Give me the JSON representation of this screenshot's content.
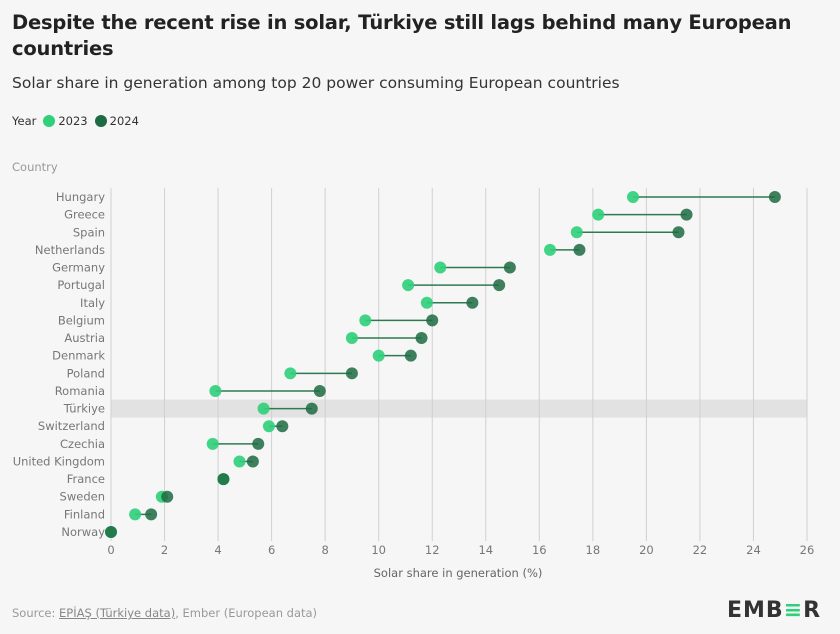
{
  "title": "Despite the recent rise in solar, Türkiye still lags behind many European countries",
  "subtitle": "Solar share in generation among top 20 power consuming European countries",
  "legend": {
    "label": "Year",
    "items": [
      "2023",
      "2024"
    ]
  },
  "colors": {
    "2023": "#2fd07a",
    "2024": "#1d6b42",
    "highlight": "#e2e2e2"
  },
  "source": {
    "prefix": "Source: ",
    "link": "EPİAŞ (Türkiye data)",
    "rest": ", Ember (European data)"
  },
  "logo": "EMBER",
  "chart_data": {
    "type": "dumbbell",
    "ylabel": "Country",
    "xlabel": "Solar share in generation (%)",
    "xlim": [
      0,
      26
    ],
    "xticks": [
      0,
      2,
      4,
      6,
      8,
      10,
      12,
      14,
      16,
      18,
      20,
      22,
      24,
      26
    ],
    "grid": "vertical",
    "highlight": "Türkiye",
    "categories": [
      "Hungary",
      "Greece",
      "Spain",
      "Netherlands",
      "Germany",
      "Portugal",
      "Italy",
      "Belgium",
      "Austria",
      "Denmark",
      "Poland",
      "Romania",
      "Türkiye",
      "Switzerland",
      "Czechia",
      "United Kingdom",
      "France",
      "Sweden",
      "Finland",
      "Norway"
    ],
    "series": [
      {
        "name": "2023",
        "values": [
          19.5,
          18.2,
          17.4,
          16.4,
          12.3,
          11.1,
          11.8,
          9.5,
          9.0,
          10.0,
          6.7,
          3.9,
          5.7,
          5.9,
          3.8,
          4.8,
          4.2,
          1.9,
          0.9,
          0.0
        ]
      },
      {
        "name": "2024",
        "values": [
          24.8,
          21.5,
          21.2,
          17.5,
          14.9,
          14.5,
          13.5,
          12.0,
          11.6,
          11.2,
          9.0,
          7.8,
          7.5,
          6.4,
          5.5,
          5.3,
          4.2,
          2.1,
          1.5,
          0.0
        ]
      }
    ]
  }
}
